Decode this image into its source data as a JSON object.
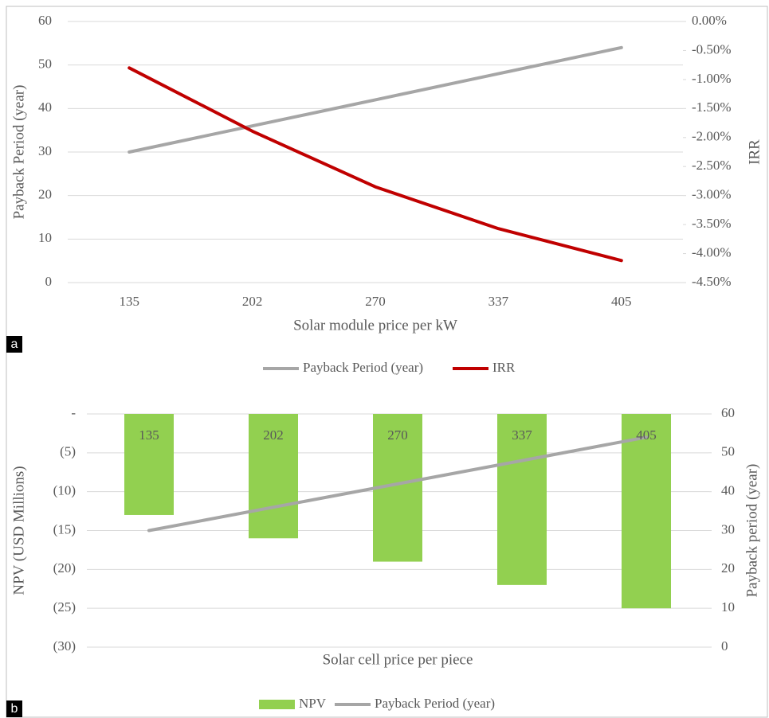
{
  "chart_data": [
    {
      "type": "line",
      "panel_label": "a",
      "x_label": "Solar module price per kW",
      "y_label": "Payback Period (year)",
      "y2_label": "IRR",
      "categories": [
        "135",
        "202",
        "270",
        "337",
        "405"
      ],
      "series": [
        {
          "name": "Payback Period (year)",
          "color": "#a6a6a6",
          "values": [
            30,
            36,
            42,
            48,
            54
          ]
        },
        {
          "name": "IRR",
          "color": "#c00000",
          "axis": "y2",
          "values": [
            -0.8,
            -1.89,
            -2.85,
            -3.57,
            -4.12
          ]
        }
      ],
      "ylim": [
        0,
        60
      ],
      "yticks": [
        0,
        10,
        20,
        30,
        40,
        50,
        60
      ],
      "y2lim": [
        -4.5,
        0
      ],
      "y2ticks": [
        {
          "value": -4.5,
          "label": "-4.50%"
        },
        {
          "value": -4,
          "label": "-4.00%"
        },
        {
          "value": -3.5,
          "label": "-3.50%"
        },
        {
          "value": -3,
          "label": "-3.00%"
        },
        {
          "value": -2.5,
          "label": "-2.50%"
        },
        {
          "value": -2,
          "label": "-2.00%"
        },
        {
          "value": -1.5,
          "label": "-1.50%"
        },
        {
          "value": -1,
          "label": "-1.00%"
        },
        {
          "value": -0.5,
          "label": "-0.50%"
        },
        {
          "value": 0,
          "label": "0.00%"
        }
      ],
      "grid": true,
      "legend": "bottom"
    },
    {
      "type": "bar",
      "panel_label": "b",
      "x_label": "Solar cell price per piece",
      "y_label": "NPV (USD Millions)",
      "y2_label": "Payback period (year)",
      "categories": [
        "135",
        "202",
        "270",
        "337",
        "405"
      ],
      "series": [
        {
          "name": "NPV",
          "type": "bar",
          "color": "#92d050",
          "values": [
            -13,
            -16,
            -19,
            -22,
            -25
          ]
        },
        {
          "name": "Payback Period (year)",
          "type": "line",
          "color": "#a6a6a6",
          "axis": "y2",
          "values": [
            30,
            36,
            42,
            48,
            54
          ]
        }
      ],
      "ylim": [
        -30,
        0
      ],
      "yticks": [
        {
          "value": -30,
          "label": "(30)"
        },
        {
          "value": -25,
          "label": "(25)"
        },
        {
          "value": -20,
          "label": "(20)"
        },
        {
          "value": -15,
          "label": "(15)"
        },
        {
          "value": -10,
          "label": "(10)"
        },
        {
          "value": -5,
          "label": "(5)"
        },
        {
          "value": 0,
          "label": "-"
        }
      ],
      "y2lim": [
        0,
        60
      ],
      "y2ticks": [
        0,
        10,
        20,
        30,
        40,
        50,
        60
      ],
      "grid": true,
      "legend": "bottom"
    }
  ]
}
